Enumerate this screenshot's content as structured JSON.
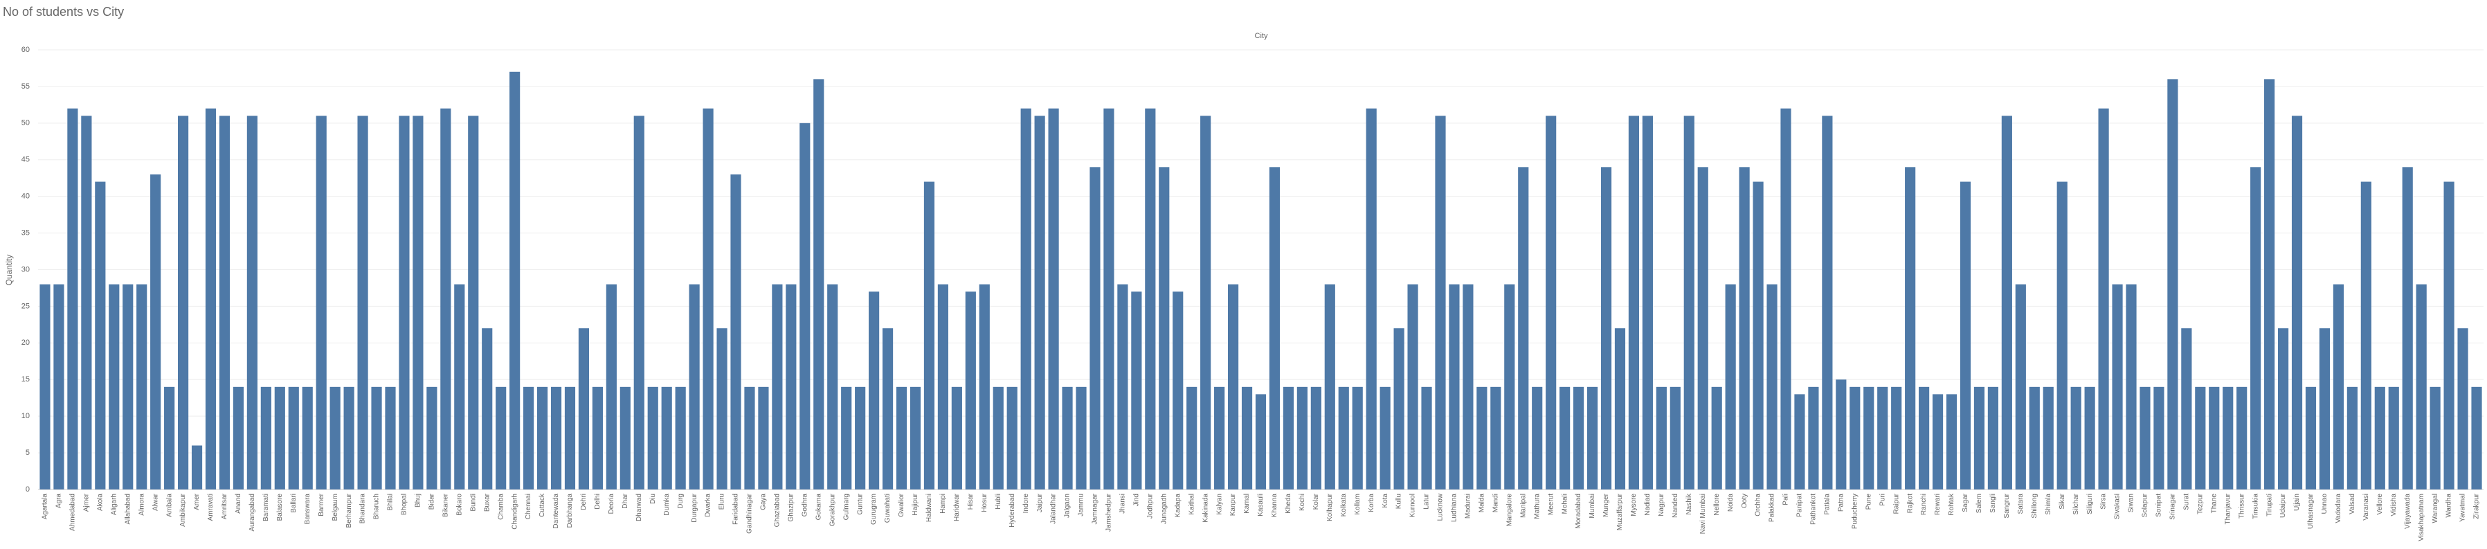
{
  "chart_data": {
    "type": "bar",
    "title": "No of students vs City",
    "subtitle": "City",
    "ylabel": "Quantity",
    "color": "#4e79a7",
    "grid": true,
    "ylim": [
      0,
      60
    ],
    "yticks": [
      0,
      5,
      10,
      15,
      20,
      25,
      30,
      35,
      40,
      45,
      50,
      55,
      60
    ],
    "categories": [
      "Agartala",
      "Agra",
      "Ahmedabad",
      "Ajmer",
      "Akola",
      "Aligarh",
      "Allahabad",
      "Almora",
      "Alwar",
      "Ambala",
      "Ambikapur",
      "Amer",
      "Amravati",
      "Amritsar",
      "Anand",
      "Aurangabad",
      "Baramati",
      "Balasore",
      "Ballari",
      "Banswara",
      "Barmer",
      "Belgaum",
      "Berhampur",
      "Bhandara",
      "Bharuch",
      "Bhilai",
      "Bhopal",
      "Bhuj",
      "Bidar",
      "Bikaner",
      "Bokaro",
      "Bundi",
      "Buxar",
      "Chamba",
      "Chandigarh",
      "Chennai",
      "Cuttack",
      "Dantewada",
      "Darbhanga",
      "Dehri",
      "Delhi",
      "Deoria",
      "Dhar",
      "Dharwad",
      "Diu",
      "Dumka",
      "Durg",
      "Durgapur",
      "Dwarka",
      "Eluru",
      "Faridabad",
      "Gandhinagar",
      "Gaya",
      "Ghaziabad",
      "Ghazipur",
      "Godhra",
      "Gokarna",
      "Gorakhpur",
      "Gulmarg",
      "Guntur",
      "Gurugram",
      "Guwahati",
      "Gwalior",
      "Hajipur",
      "Haldwani",
      "Hampi",
      "Haridwar",
      "Hisar",
      "Hosur",
      "Hubli",
      "Hyderabad",
      "Indore",
      "Jaipur",
      "Jalandhar",
      "Jalgaon",
      "Jammu",
      "Jamnagar",
      "Jamshedpur",
      "Jhansi",
      "Jind",
      "Jodhpur",
      "Junagadh",
      "Kadapa",
      "Kaithal",
      "Kakinada",
      "Kalyan",
      "Kanpur",
      "Karnal",
      "Kasauli",
      "Khanna",
      "Kheda",
      "Kochi",
      "Kolar",
      "Kolhapur",
      "Kolkata",
      "Kollam",
      "Korba",
      "Kota",
      "Kullu",
      "Kurnool",
      "Latur",
      "Lucknow",
      "Ludhiana",
      "Madurai",
      "Malda",
      "Mandi",
      "Mangalore",
      "Manipal",
      "Mathura",
      "Meerut",
      "Mohali",
      "Moradabad",
      "Mumbai",
      "Munger",
      "Muzaffarpur",
      "Mysore",
      "Nadiad",
      "Nagpur",
      "Nanded",
      "Nashik",
      "Navi Mumbai",
      "Nellore",
      "Noida",
      "Ooty",
      "Orchha",
      "Palakkad",
      "Pali",
      "Panipat",
      "Pathankot",
      "Patiala",
      "Patna",
      "Puducherry",
      "Pune",
      "Puri",
      "Raipur",
      "Rajkot",
      "Ranchi",
      "Rewari",
      "Rohtak",
      "Sagar",
      "Salem",
      "Sangli",
      "Sangrur",
      "Satara",
      "Shillong",
      "Shimla",
      "Sikar",
      "Silchar",
      "Siliguri",
      "Sirsa",
      "Sivakasi",
      "Siwan",
      "Solapur",
      "Sonipat",
      "Srinagar",
      "Surat",
      "Tezpur",
      "Thane",
      "Thanjavur",
      "Thrissur",
      "Tinsukia",
      "Tirupati",
      "Udaipur",
      "Ujjain",
      "Ulhasnagar",
      "Unnao",
      "Vadodara",
      "Valsad",
      "Varanasi",
      "Vellore",
      "Vidisha",
      "Vijayawada",
      "Visakhapatnam",
      "Warangal",
      "Wardha",
      "Yavatmal",
      "Zirakpur"
    ],
    "values": [
      28,
      28,
      52,
      51,
      42,
      28,
      28,
      28,
      43,
      14,
      51,
      6,
      52,
      51,
      14,
      51,
      14,
      14,
      14,
      14,
      51,
      14,
      14,
      51,
      14,
      14,
      51,
      51,
      14,
      52,
      28,
      51,
      22,
      14,
      57,
      14,
      14,
      14,
      14,
      22,
      14,
      28,
      14,
      51,
      14,
      14,
      14,
      28,
      52,
      22,
      43,
      14,
      14,
      28,
      28,
      50,
      56,
      28,
      14,
      14,
      27,
      22,
      14,
      14,
      42,
      28,
      14,
      27,
      28,
      14,
      14,
      52,
      51,
      52,
      14,
      14,
      44,
      52,
      28,
      27,
      52,
      44,
      27,
      14,
      51,
      14,
      28,
      14,
      13,
      44,
      14,
      14,
      14,
      28,
      14,
      14,
      52,
      14,
      22,
      28,
      14,
      51,
      28,
      28,
      14,
      14,
      28,
      44,
      14,
      51,
      14,
      14,
      14,
      44,
      22,
      51,
      51,
      14,
      14,
      51,
      44,
      14,
      28,
      44,
      42,
      28,
      52,
      13,
      14,
      51,
      15,
      14,
      14,
      14,
      14,
      44,
      14,
      13,
      13,
      42,
      14,
      14,
      51,
      28,
      14,
      14,
      42,
      14,
      14,
      52,
      28,
      28,
      14,
      14,
      56,
      22,
      14,
      14,
      14,
      14,
      44,
      56,
      22,
      51,
      14,
      22,
      28,
      14,
      42,
      14,
      14,
      44,
      28,
      14,
      42,
      22,
      14
    ]
  }
}
